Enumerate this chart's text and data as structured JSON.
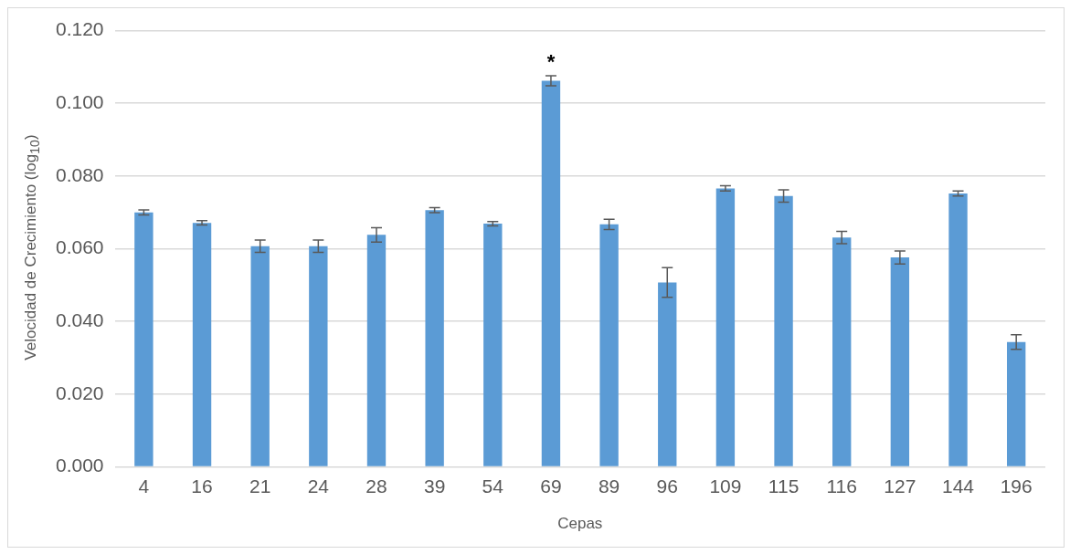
{
  "chart_data": {
    "type": "bar",
    "xlabel": "Cepas",
    "ylabel": "Velocidad de Crecimiento (log$_{10}$)",
    "categories": [
      "4",
      "16",
      "21",
      "24",
      "28",
      "39",
      "54",
      "69",
      "89",
      "96",
      "109",
      "115",
      "116",
      "127",
      "144",
      "196"
    ],
    "values": [
      0.07,
      0.0671,
      0.0607,
      0.0607,
      0.0638,
      0.0706,
      0.0669,
      0.1062,
      0.0667,
      0.0507,
      0.0766,
      0.0745,
      0.0631,
      0.0576,
      0.0752,
      0.0343
    ],
    "errors": [
      0.0007,
      0.0006,
      0.0017,
      0.0017,
      0.002,
      0.0007,
      0.0006,
      0.0014,
      0.0014,
      0.0041,
      0.0007,
      0.0017,
      0.0017,
      0.0018,
      0.0007,
      0.002
    ],
    "color": "#5b9bd5",
    "ylim": [
      0,
      0.12
    ],
    "yticks": [
      {
        "value": 0,
        "label": "0.000"
      },
      {
        "value": 0.02,
        "label": "0.020"
      },
      {
        "value": 0.04,
        "label": "0.040"
      },
      {
        "value": 0.06,
        "label": "0.060"
      },
      {
        "value": 0.08,
        "label": "0.080"
      },
      {
        "value": 0.1,
        "label": "0.100"
      },
      {
        "value": 0.12,
        "label": "0.120"
      }
    ],
    "grid": "y",
    "legend": false,
    "annotations": [
      {
        "text": "*",
        "x": "69",
        "y": 0.1062
      }
    ]
  }
}
